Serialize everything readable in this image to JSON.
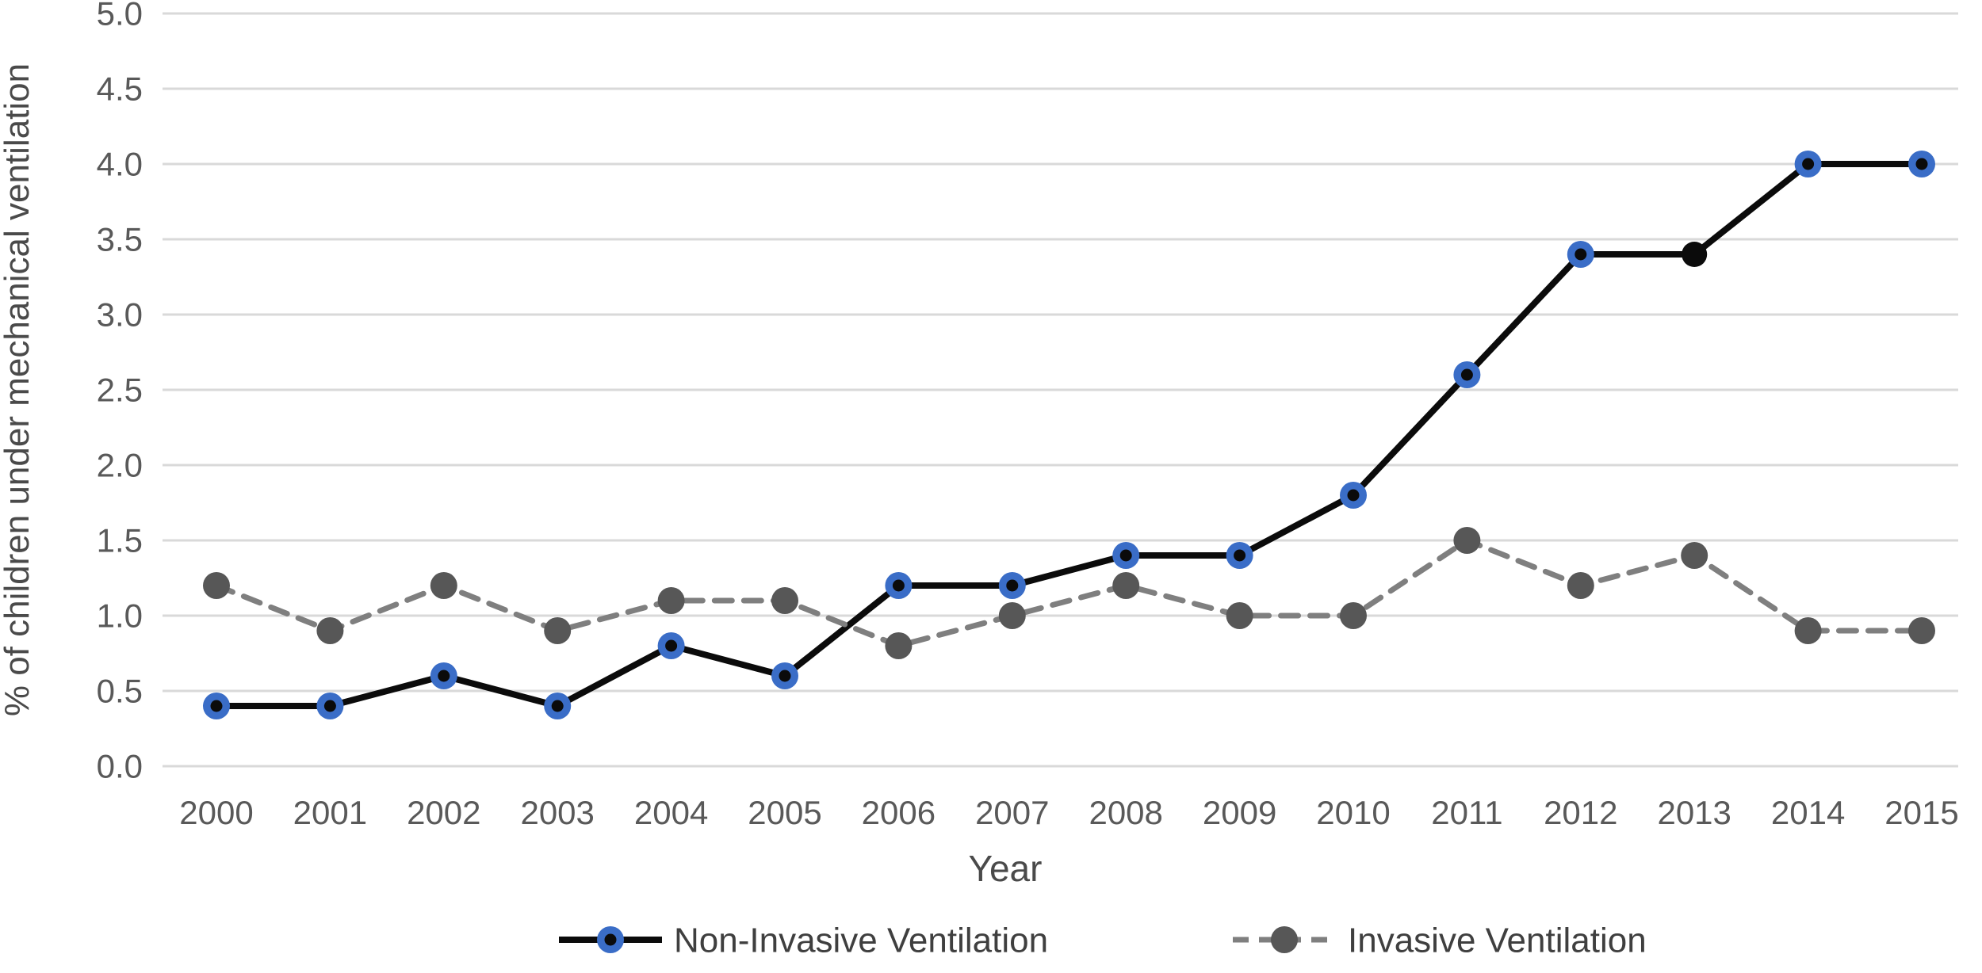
{
  "chart_data": {
    "type": "line",
    "title": "",
    "xlabel": "Year",
    "ylabel": "% of children under mechanical ventilation",
    "categories": [
      "2000",
      "2001",
      "2002",
      "2003",
      "2004",
      "2005",
      "2006",
      "2007",
      "2008",
      "2009",
      "2010",
      "2011",
      "2012",
      "2013",
      "2014",
      "2015"
    ],
    "ylim": [
      0.0,
      5.0
    ],
    "ytick_step": 0.5,
    "yticks": [
      "0.0",
      "0.5",
      "1.0",
      "1.5",
      "2.0",
      "2.5",
      "3.0",
      "3.5",
      "4.0",
      "4.5",
      "5.0"
    ],
    "grid": "horizontal",
    "legend_position": "bottom-center",
    "series": [
      {
        "name": "Non-Invasive Ventilation",
        "values": [
          0.4,
          0.4,
          0.6,
          0.4,
          0.8,
          0.6,
          1.2,
          1.2,
          1.4,
          1.4,
          1.8,
          2.6,
          3.4,
          3.4,
          4.0,
          4.0
        ],
        "line_style": "solid",
        "line_color": "#0b0b0b",
        "marker": "ring",
        "marker_ring_color": "#3a6dc7",
        "marker_core_color": "#0b0b0b",
        "marker_overrides": {
          "13": "solid-black"
        }
      },
      {
        "name": "Invasive Ventilation",
        "values": [
          1.2,
          0.9,
          1.2,
          0.9,
          1.1,
          1.1,
          0.8,
          1.0,
          1.2,
          1.0,
          1.0,
          1.5,
          1.2,
          1.4,
          0.9,
          0.9
        ],
        "line_style": "dashed",
        "line_color": "#7f7f7f",
        "marker": "solid",
        "marker_color": "#575757"
      }
    ]
  },
  "colors": {
    "gridline": "#d9d9d9",
    "tick_label": "#595959",
    "axis_title": "#4a4a4a",
    "legend_text": "#3f3f3f",
    "background": "#ffffff"
  }
}
